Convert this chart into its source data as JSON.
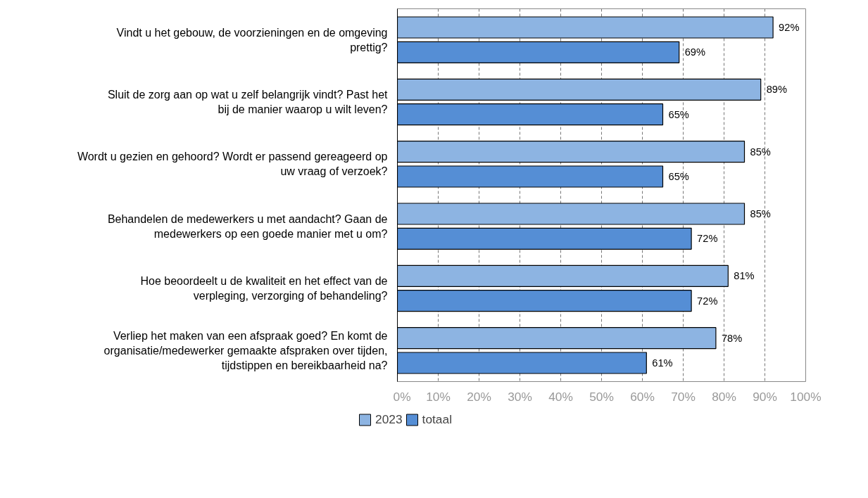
{
  "chart_data": {
    "type": "bar",
    "orientation": "horizontal",
    "categories": [
      "Vindt u het gebouw, de voorzieningen en de omgeving prettig?",
      "Sluit de zorg aan op wat u zelf belangrijk vindt? Past het bij de manier waarop u wilt leven?",
      "Wordt u gezien en gehoord? Wordt er passend gereageerd op uw vraag of verzoek?",
      "Behandelen de medewerkers u met aandacht? Gaan de medewerkers op een goede manier met u om?",
      "Hoe beoordeelt u de kwaliteit en het effect van de verpleging, verzorging of behandeling?",
      "Verliep het maken van een afspraak goed? En komt de organisatie/medewerker gemaakte afspraken over tijden, tijdstippen en bereikbaarheid na?"
    ],
    "series": [
      {
        "name": "2023",
        "color": "#8db4e2",
        "values": [
          92,
          89,
          85,
          85,
          81,
          78
        ],
        "value_labels": [
          "92%",
          "89%",
          "85%",
          "85%",
          "81%",
          "78%"
        ]
      },
      {
        "name": "totaal",
        "color": "#558ed5",
        "values": [
          69,
          65,
          65,
          72,
          72,
          61
        ],
        "value_labels": [
          "69%",
          "65%",
          "65%",
          "72%",
          "72%",
          "61%"
        ]
      }
    ],
    "xlim": [
      0,
      100
    ],
    "xticks": [
      {
        "value": 0,
        "label": "0%"
      },
      {
        "value": 10,
        "label": "10%"
      },
      {
        "value": 20,
        "label": "20%"
      },
      {
        "value": 30,
        "label": "30%"
      },
      {
        "value": 40,
        "label": "40%"
      },
      {
        "value": 50,
        "label": "50%"
      },
      {
        "value": 60,
        "label": "60%"
      },
      {
        "value": 70,
        "label": "70%"
      },
      {
        "value": 80,
        "label": "80%"
      },
      {
        "value": 90,
        "label": "90%"
      },
      {
        "value": 100,
        "label": "100%"
      }
    ],
    "grid": "x",
    "legend": "bottom"
  }
}
